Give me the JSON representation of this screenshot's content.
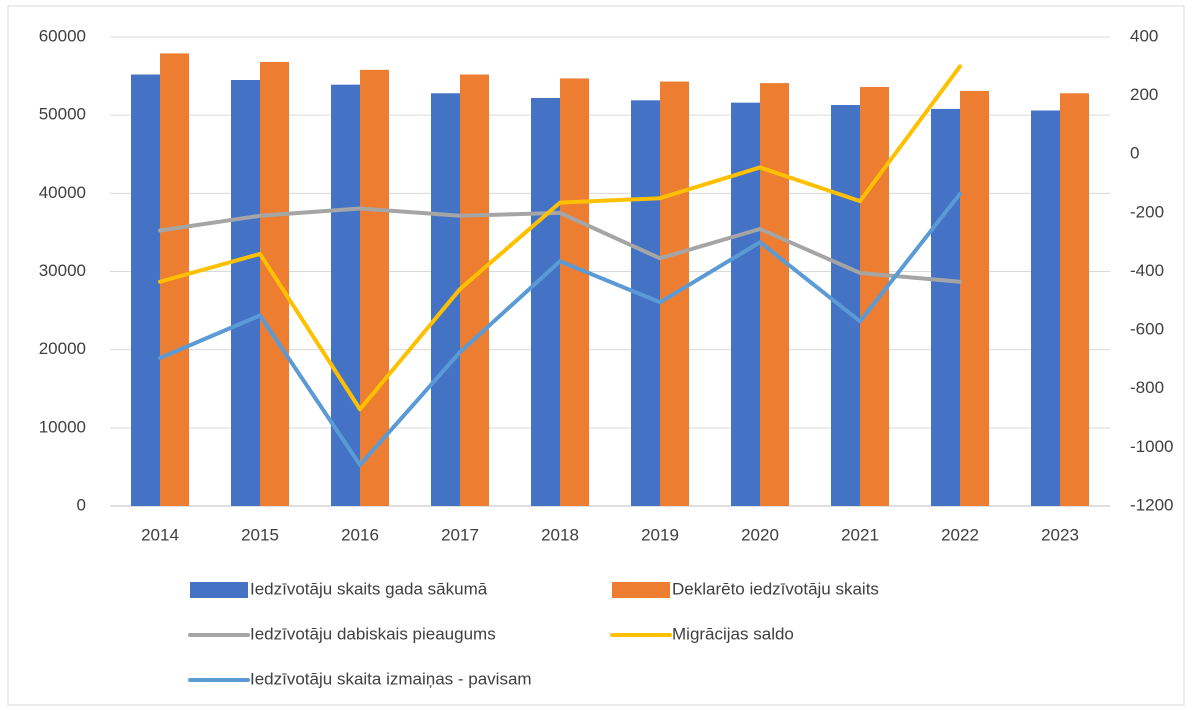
{
  "chart_data": {
    "type": "bar",
    "categories": [
      "2014",
      "2015",
      "2016",
      "2017",
      "2018",
      "2019",
      "2020",
      "2021",
      "2022",
      "2023"
    ],
    "series": [
      {
        "name": "Iedzīvotāju skaits gada sākumā",
        "type": "bar",
        "color": "#4472c4",
        "values": [
          55200,
          54500,
          53900,
          52800,
          52200,
          51900,
          51600,
          51300,
          50800,
          50600
        ]
      },
      {
        "name": "Deklarēto iedzīvotāju skaits",
        "type": "bar",
        "color": "#ed7d31",
        "values": [
          57900,
          56800,
          55800,
          55200,
          54700,
          54300,
          54100,
          53600,
          53100,
          52800
        ]
      },
      {
        "name": "Iedzīvotāju dabiskais pieaugums",
        "type": "line",
        "axis": "y2",
        "color": "#a5a5a5",
        "values": [
          -260,
          -210,
          -185,
          -210,
          -200,
          -355,
          -255,
          -405,
          -435,
          null
        ]
      },
      {
        "name": "Migrācijas saldo",
        "type": "line",
        "axis": "y2",
        "color": "#ffc000",
        "values": [
          -435,
          -340,
          -870,
          -460,
          -165,
          -150,
          -45,
          -160,
          300,
          null
        ]
      },
      {
        "name": "Iedzīvotāju skaita izmaiņas - pavisam",
        "type": "line",
        "axis": "y2",
        "color": "#5b9bd5",
        "values": [
          -695,
          -550,
          -1060,
          -675,
          -365,
          -505,
          -300,
          -570,
          -135,
          null
        ]
      }
    ],
    "ylim": [
      0,
      60000
    ],
    "yticks": [
      0,
      10000,
      20000,
      30000,
      40000,
      50000,
      60000
    ],
    "y2lim": [
      -1200,
      400
    ],
    "y2ticks": [
      -1200,
      -1000,
      -800,
      -600,
      -400,
      -200,
      0,
      200,
      400
    ],
    "grid": true,
    "legend": "bottom"
  }
}
